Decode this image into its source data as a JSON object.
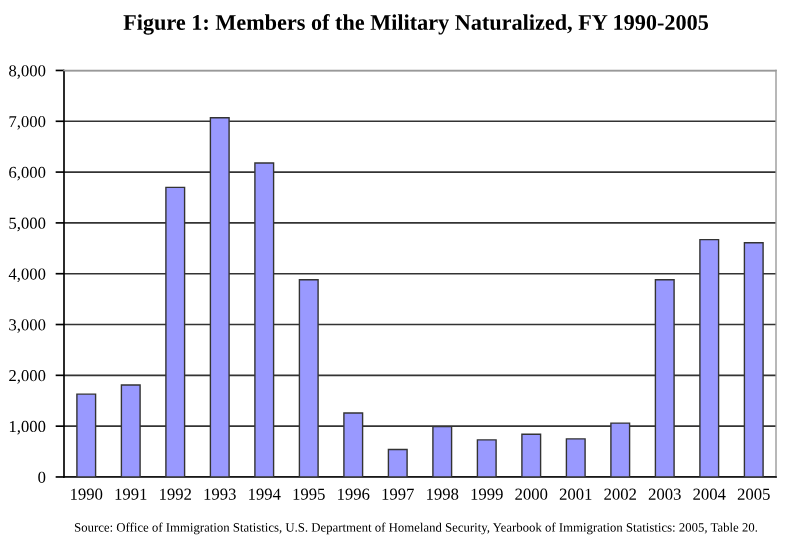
{
  "chart_data": {
    "type": "bar",
    "title": "Figure 1: Members of the Military Naturalized, FY 1990-2005",
    "categories": [
      "1990",
      "1991",
      "1992",
      "1993",
      "1994",
      "1995",
      "1996",
      "1997",
      "1998",
      "1999",
      "2000",
      "2001",
      "2002",
      "2003",
      "2004",
      "2005"
    ],
    "values": [
      1630,
      1810,
      5700,
      7070,
      6180,
      3880,
      1260,
      540,
      990,
      730,
      840,
      750,
      1060,
      3880,
      4670,
      4610
    ],
    "color": "#9999ff",
    "ylim": [
      0,
      8000
    ],
    "yticks": [
      {
        "value": 0,
        "label": "0"
      },
      {
        "value": 1000,
        "label": "1,000"
      },
      {
        "value": 2000,
        "label": "2,000"
      },
      {
        "value": 3000,
        "label": "3,000"
      },
      {
        "value": 4000,
        "label": "4,000"
      },
      {
        "value": 5000,
        "label": "5,000"
      },
      {
        "value": 6000,
        "label": "6,000"
      },
      {
        "value": 7000,
        "label": "7,000"
      },
      {
        "value": 8000,
        "label": "8,000"
      }
    ],
    "grid": "y",
    "annotations": [
      "Source: Office of Immigration Statistics, U.S. Department of Homeland Security, Yearbook of Immigration Statistics: 2005, Table 20."
    ]
  }
}
